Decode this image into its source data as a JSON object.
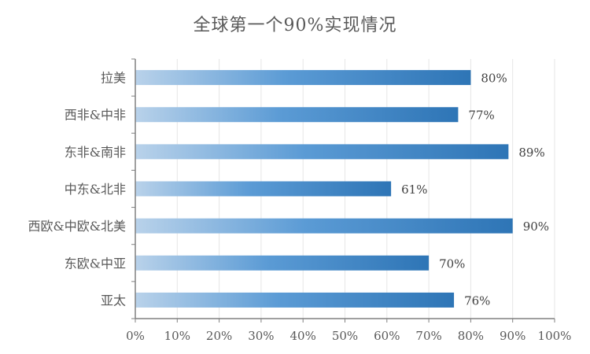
{
  "chart_data": {
    "type": "bar",
    "orientation": "horizontal",
    "title": "全球第一个90%实现情况",
    "categories": [
      "拉美",
      "西非&中非",
      "东非&南非",
      "中东&北非",
      "西欧&中欧&北美",
      "东欧&中亚",
      "亚太"
    ],
    "values": [
      80,
      77,
      89,
      61,
      90,
      70,
      76
    ],
    "data_labels": [
      "80%",
      "77%",
      "89%",
      "61%",
      "90%",
      "70%",
      "76%"
    ],
    "xlim": [
      0,
      100
    ],
    "x_ticks": [
      "0%",
      "10%",
      "20%",
      "30%",
      "40%",
      "50%",
      "60%",
      "70%",
      "80%",
      "90%",
      "100%"
    ],
    "grid": true,
    "colors": {
      "bar_gradient_start": "#b9d2ea",
      "bar_gradient_mid": "#5b9bd5",
      "bar_gradient_end": "#2e75b6",
      "axis": "#808080",
      "grid": "#e6e6e6",
      "text": "#595959"
    }
  }
}
